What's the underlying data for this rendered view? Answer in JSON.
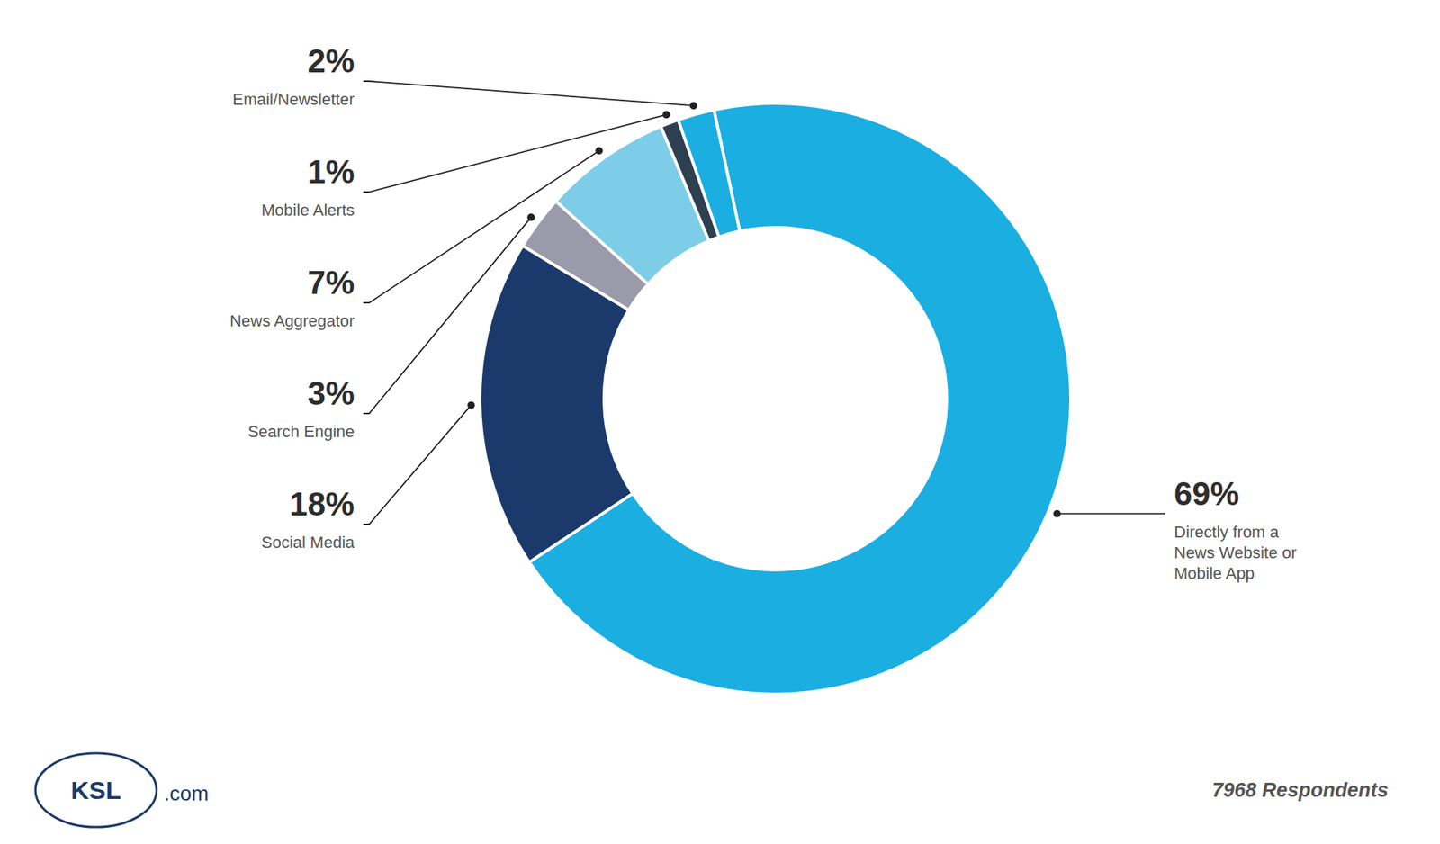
{
  "chart_data": {
    "type": "pie",
    "categories": [
      "Directly from a\nNews Website or\nMobile App",
      "Social Media",
      "Search Engine",
      "News Aggregator",
      "Mobile Alerts",
      "Email/Newsletter"
    ],
    "values": [
      69,
      18,
      3,
      7,
      1,
      2
    ],
    "value_labels": [
      "69%",
      "18%",
      "3%",
      "7%",
      "1%",
      "2%"
    ],
    "data_labels": true,
    "colors": [
      "#1BAEE1",
      "#1B3A6B",
      "#9A9AAA",
      "#7DCDE8",
      "#2E3F50",
      "#1BAEE1"
    ],
    "annotations": [
      "KSL",
      ".com",
      "7968 Respondents"
    ]
  }
}
